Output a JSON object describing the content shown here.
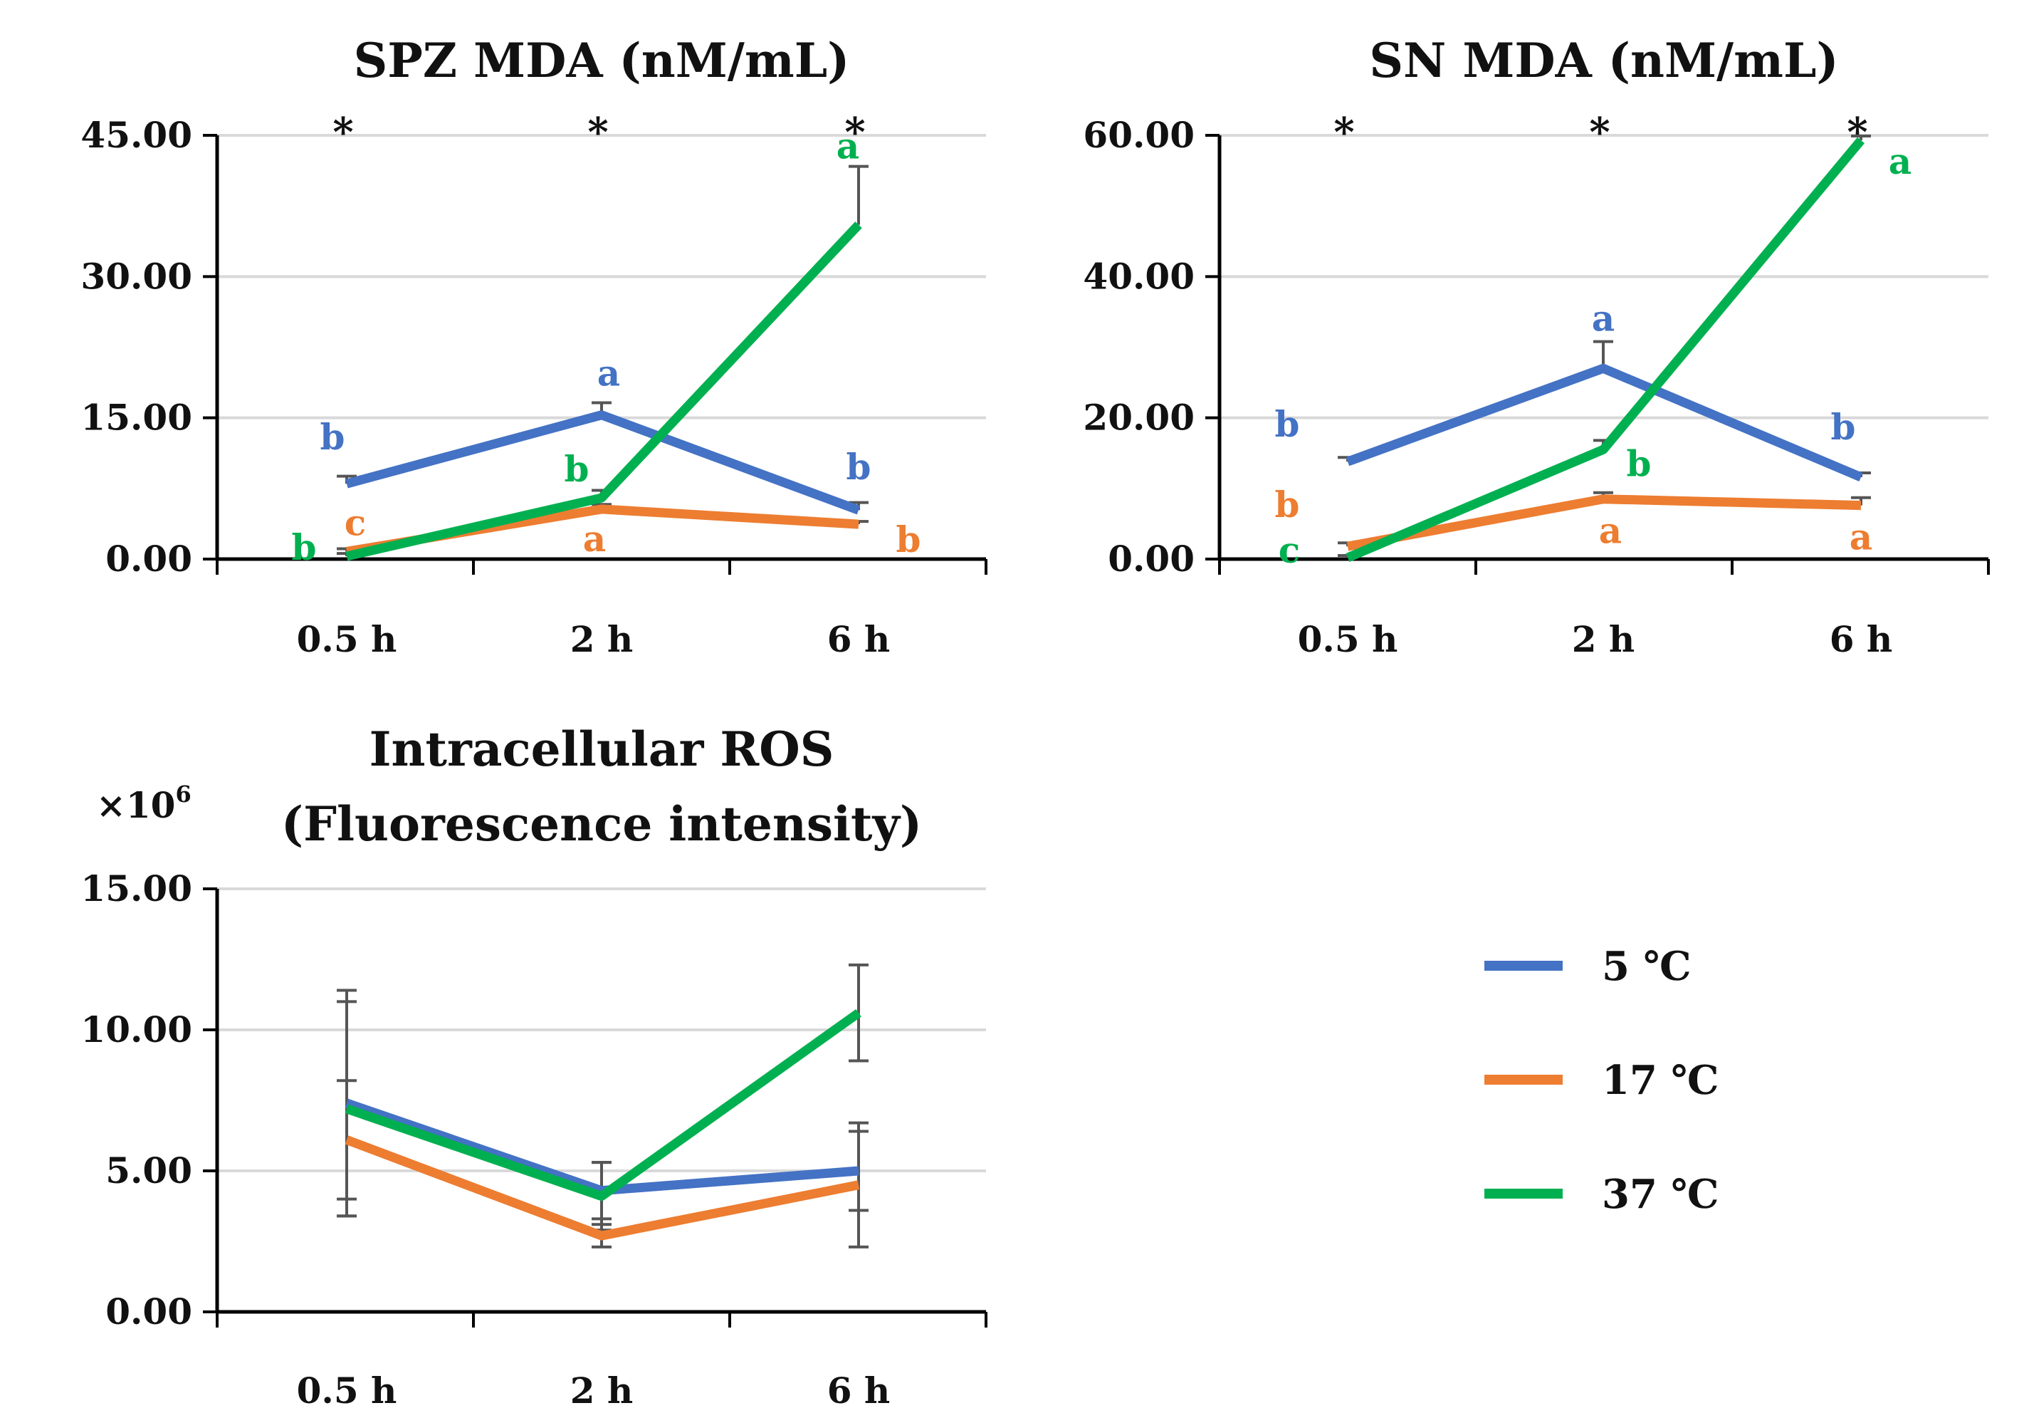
{
  "colors": {
    "5C": "#4472C4",
    "17C": "#ED7D31",
    "37C": "#00B050",
    "axis": "#000000",
    "grid": "#D9D9D9",
    "errorbar": "#555555"
  },
  "legend": {
    "items": [
      {
        "label": "5 ℃",
        "color": "#4472C4"
      },
      {
        "label": "17 ℃",
        "color": "#ED7D31"
      },
      {
        "label": "37 ℃",
        "color": "#00B050"
      }
    ]
  },
  "chart_data": [
    {
      "type": "line",
      "title": "SPZ MDA (nM/mL)",
      "title_lines": [
        "SPZ MDA (nM/mL)"
      ],
      "categories": [
        "0.5 h",
        "2 h",
        "6 h"
      ],
      "yticks": [
        "0.00",
        "15.00",
        "30.00",
        "45.00"
      ],
      "ylim": [
        0,
        45
      ],
      "multiplier": "",
      "stars": [
        "*",
        "*",
        "*"
      ],
      "series": [
        {
          "name": "5 ℃",
          "color": "#4472C4",
          "values": [
            8.0,
            15.3,
            5.2
          ],
          "err": [
            0.8,
            1.3,
            0.8
          ],
          "sig": [
            "b",
            "a",
            "b"
          ]
        },
        {
          "name": "17 ℃",
          "color": "#ED7D31",
          "values": [
            0.8,
            5.3,
            3.7
          ],
          "err": [
            0.3,
            0.5,
            0.3
          ],
          "sig": [
            "c",
            "a",
            "b"
          ]
        },
        {
          "name": "37 ℃",
          "color": "#00B050",
          "values": [
            0.3,
            6.5,
            35.5
          ],
          "err": [
            0.3,
            0.8,
            6.2
          ],
          "sig": [
            "b",
            "b",
            "a"
          ]
        }
      ]
    },
    {
      "type": "line",
      "title": "SN MDA (nM/mL)",
      "title_lines": [
        "SN MDA (nM/mL)"
      ],
      "categories": [
        "0.5 h",
        "2 h",
        "6 h"
      ],
      "yticks": [
        "0.00",
        "20.00",
        "40.00",
        "60.00"
      ],
      "ylim": [
        0,
        60
      ],
      "multiplier": "",
      "stars": [
        "*",
        "*",
        "*"
      ],
      "series": [
        {
          "name": "5 ℃",
          "color": "#4472C4",
          "values": [
            13.8,
            27.0,
            11.6
          ],
          "err": [
            0.6,
            3.8,
            0.6
          ],
          "sig": [
            "b",
            "a",
            "b"
          ]
        },
        {
          "name": "17 ℃",
          "color": "#ED7D31",
          "values": [
            1.8,
            8.5,
            7.6
          ],
          "err": [
            0.5,
            0.9,
            1.1
          ],
          "sig": [
            "b",
            "a",
            "a"
          ]
        },
        {
          "name": "37 ℃",
          "color": "#00B050",
          "values": [
            0.2,
            15.5,
            59.3
          ],
          "err": [
            0.3,
            1.3,
            0.6
          ],
          "sig": [
            "c",
            "b",
            "a"
          ]
        }
      ]
    },
    {
      "type": "line",
      "title": "Intracellular ROS (Fluorescence intensity)",
      "title_lines": [
        "Intracellular ROS",
        "(Fluorescence intensity)"
      ],
      "categories": [
        "0.5 h",
        "2 h",
        "6 h"
      ],
      "yticks": [
        "0.00",
        "5.00",
        "10.00",
        "15.00"
      ],
      "ylim": [
        0,
        15
      ],
      "multiplier": "×10",
      "multiplier_exp": "6",
      "stars": [
        "",
        "",
        ""
      ],
      "series": [
        {
          "name": "5 ℃",
          "color": "#4472C4",
          "values": [
            7.4,
            4.3,
            5.0
          ],
          "err": [
            4.0,
            1.0,
            1.4
          ],
          "sig": [
            "",
            "",
            ""
          ]
        },
        {
          "name": "17 ℃",
          "color": "#ED7D31",
          "values": [
            6.1,
            2.7,
            4.5
          ],
          "err": [
            2.1,
            0.4,
            2.2
          ],
          "sig": [
            "",
            "",
            ""
          ]
        },
        {
          "name": "37 ℃",
          "color": "#00B050",
          "values": [
            7.2,
            4.1,
            10.6
          ],
          "err": [
            3.8,
            1.2,
            1.7
          ],
          "sig": [
            "",
            "",
            ""
          ]
        }
      ]
    }
  ]
}
